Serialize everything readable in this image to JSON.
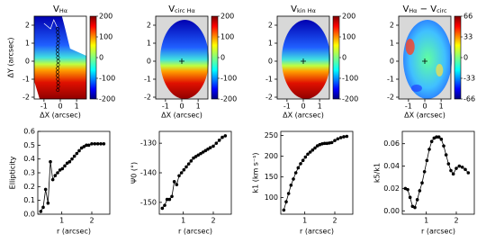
{
  "chart_data": [
    {
      "type": "map",
      "title": [
        "V",
        "Hα"
      ],
      "xlabel": "ΔX (arcsec)",
      "ylabel": "ΔY (arcsec)",
      "xlim": [
        -1.6,
        1.6
      ],
      "ylim": [
        -2.1,
        2.5
      ],
      "xticks": [
        -1,
        0,
        1
      ],
      "yticks": [
        -2,
        -1,
        0,
        1,
        2
      ],
      "clim": [
        -200,
        200
      ],
      "cticks": [
        -200,
        -100,
        0,
        100,
        200
      ]
    },
    {
      "type": "map",
      "title": [
        "V",
        "circ Hα"
      ],
      "xlabel": "ΔX (arcsec)",
      "xlim": [
        -1.6,
        1.6
      ],
      "ylim": [
        -2.1,
        2.5
      ],
      "xticks": [
        -1,
        0,
        1
      ],
      "yticks": [
        -2,
        -1,
        0,
        1,
        2
      ],
      "clim": [
        -200,
        200
      ],
      "cticks": [
        -200,
        -100,
        0,
        100,
        200
      ]
    },
    {
      "type": "map",
      "title": [
        "V",
        "kin Hα"
      ],
      "xlabel": "ΔX (arcsec)",
      "xlim": [
        -1.6,
        1.6
      ],
      "ylim": [
        -2.1,
        2.5
      ],
      "xticks": [
        -1,
        0,
        1
      ],
      "yticks": [
        -2,
        -1,
        0,
        1,
        2
      ],
      "clim": [
        -200,
        200
      ],
      "cticks": [
        -200,
        -100,
        0,
        100,
        200
      ]
    },
    {
      "type": "map",
      "title": [
        "V",
        "Hα",
        " − V",
        "circ"
      ],
      "xlabel": "ΔX (arcsec)",
      "xlim": [
        -1.6,
        1.6
      ],
      "ylim": [
        -2.1,
        2.5
      ],
      "xticks": [
        -1,
        0,
        1
      ],
      "yticks": [
        -2,
        -1,
        0,
        1,
        2
      ],
      "clim": [
        -66,
        66
      ],
      "cticks": [
        -66,
        -33,
        0,
        33,
        66
      ]
    },
    {
      "type": "line",
      "xlabel": "r (arcsec)",
      "ylabel": "Ellipticity",
      "xlim": [
        0.2,
        2.6
      ],
      "ylim": [
        0,
        0.6
      ],
      "xticks": [
        1,
        2
      ],
      "yticks": [
        {
          "value": 0,
          "label": "0.0"
        },
        0.1,
        0.2,
        0.3,
        0.4,
        0.5,
        0.6
      ],
      "x": [
        0.3,
        0.38,
        0.46,
        0.54,
        0.62,
        0.7,
        0.78,
        0.86,
        0.94,
        1.02,
        1.1,
        1.18,
        1.26,
        1.34,
        1.42,
        1.5,
        1.58,
        1.66,
        1.74,
        1.82,
        1.9,
        2.0,
        2.1,
        2.2,
        2.3,
        2.4
      ],
      "values": [
        0.02,
        0.05,
        0.18,
        0.08,
        0.38,
        0.25,
        0.28,
        0.3,
        0.32,
        0.33,
        0.35,
        0.37,
        0.38,
        0.4,
        0.42,
        0.44,
        0.46,
        0.48,
        0.49,
        0.5,
        0.5,
        0.51,
        0.51,
        0.51,
        0.51,
        0.51
      ]
    },
    {
      "type": "line",
      "xlabel": "r (arcsec)",
      "ylabel": "Ψ0 (°)",
      "xlim": [
        0.2,
        2.6
      ],
      "ylim": [
        -154,
        -126
      ],
      "xticks": [
        1,
        2
      ],
      "yticks": [
        -150,
        -140,
        -130
      ],
      "x": [
        0.3,
        0.38,
        0.46,
        0.54,
        0.62,
        0.7,
        0.78,
        0.86,
        0.94,
        1.02,
        1.1,
        1.18,
        1.26,
        1.34,
        1.42,
        1.5,
        1.58,
        1.66,
        1.74,
        1.82,
        1.9,
        2.0,
        2.1,
        2.2,
        2.3,
        2.4
      ],
      "values": [
        -152,
        -151,
        -149,
        -149,
        -148,
        -143,
        -144,
        -141,
        -140,
        -139,
        -138,
        -137,
        -136,
        -135,
        -134.5,
        -134,
        -133.5,
        -133,
        -132.5,
        -132,
        -131.5,
        -131,
        -130,
        -129,
        -128,
        -127.5
      ]
    },
    {
      "type": "line",
      "xlabel": "r (arcsec)",
      "ylabel": "k1 (km s⁻¹)",
      "xlim": [
        0.2,
        2.6
      ],
      "ylim": [
        60,
        260
      ],
      "xticks": [
        1,
        2
      ],
      "yticks": [
        100,
        150,
        200,
        250
      ],
      "x": [
        0.3,
        0.38,
        0.46,
        0.54,
        0.62,
        0.7,
        0.78,
        0.86,
        0.94,
        1.02,
        1.1,
        1.18,
        1.26,
        1.34,
        1.42,
        1.5,
        1.58,
        1.66,
        1.74,
        1.82,
        1.9,
        2.0,
        2.1,
        2.2,
        2.3,
        2.4
      ],
      "values": [
        70,
        90,
        110,
        130,
        145,
        160,
        172,
        182,
        190,
        198,
        205,
        210,
        215,
        220,
        225,
        228,
        230,
        231,
        231,
        232,
        233,
        238,
        242,
        245,
        247,
        248
      ]
    },
    {
      "type": "line",
      "xlabel": "r (arcsec)",
      "ylabel": "k5/k1",
      "xlim": [
        0.2,
        2.6
      ],
      "ylim": [
        -0.003,
        0.071
      ],
      "xticks": [
        1,
        2
      ],
      "yticks": [
        {
          "value": 0,
          "label": "0.00"
        },
        {
          "value": 0.02,
          "label": "0.02"
        },
        {
          "value": 0.04,
          "label": "0.04"
        },
        {
          "value": 0.06,
          "label": "0.06"
        }
      ],
      "x": [
        0.3,
        0.38,
        0.46,
        0.54,
        0.62,
        0.7,
        0.78,
        0.86,
        0.94,
        1.02,
        1.1,
        1.18,
        1.26,
        1.34,
        1.42,
        1.5,
        1.58,
        1.66,
        1.74,
        1.82,
        1.9,
        2.0,
        2.1,
        2.2,
        2.3,
        2.4
      ],
      "values": [
        0.02,
        0.019,
        0.012,
        0.004,
        0.003,
        0.01,
        0.018,
        0.025,
        0.035,
        0.045,
        0.055,
        0.062,
        0.065,
        0.066,
        0.066,
        0.064,
        0.058,
        0.05,
        0.042,
        0.036,
        0.033,
        0.038,
        0.04,
        0.039,
        0.037,
        0.034
      ]
    }
  ]
}
